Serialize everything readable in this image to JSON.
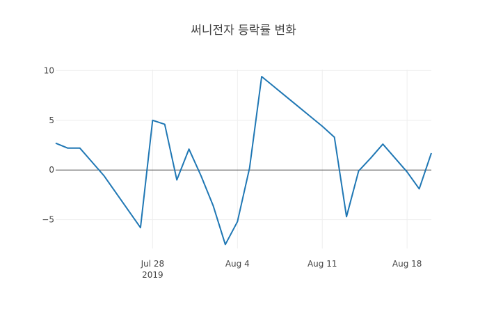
{
  "chart_data": {
    "type": "line",
    "title": "써니전자 등락률 변화",
    "xlabel": "",
    "ylabel": "",
    "x_axis": {
      "range": [
        "2019-07-20",
        "2019-08-20"
      ],
      "ticks": [
        {
          "date": "2019-07-28",
          "label": "Jul 28",
          "sublabel": "2019"
        },
        {
          "date": "2019-08-04",
          "label": "Aug 4",
          "sublabel": ""
        },
        {
          "date": "2019-08-11",
          "label": "Aug 11",
          "sublabel": ""
        },
        {
          "date": "2019-08-18",
          "label": "Aug 18",
          "sublabel": ""
        }
      ]
    },
    "y_axis": {
      "range": [
        -7.9,
        10.1
      ],
      "ticks": [
        {
          "value": 10,
          "label": "10"
        },
        {
          "value": 5,
          "label": "5"
        },
        {
          "value": 0,
          "label": "0"
        },
        {
          "value": -5,
          "label": "−5"
        }
      ]
    },
    "grid": true,
    "line_color": "#1f77b4",
    "series": [
      {
        "name": "",
        "x": [
          "2019-07-20",
          "2019-07-21",
          "2019-07-22",
          "2019-07-23",
          "2019-07-24",
          "2019-07-27",
          "2019-07-28",
          "2019-07-29",
          "2019-07-30",
          "2019-07-31",
          "2019-08-01",
          "2019-08-02",
          "2019-08-03",
          "2019-08-04",
          "2019-08-05",
          "2019-08-06",
          "2019-08-07",
          "2019-08-08",
          "2019-08-09",
          "2019-08-10",
          "2019-08-11",
          "2019-08-12",
          "2019-08-13",
          "2019-08-14",
          "2019-08-15",
          "2019-08-16",
          "2019-08-17",
          "2019-08-18",
          "2019-08-19",
          "2019-08-20"
        ],
        "y": [
          2.7,
          2.2,
          2.2,
          0.8,
          -0.6,
          -5.8,
          5.0,
          4.6,
          -1.0,
          2.1,
          -0.6,
          -3.6,
          -7.5,
          -5.2,
          0.2,
          9.4,
          8.4,
          7.4,
          6.4,
          5.4,
          4.4,
          3.3,
          -4.7,
          -0.1,
          1.2,
          2.6,
          1.2,
          -0.2,
          -1.9,
          1.7
        ]
      }
    ]
  }
}
